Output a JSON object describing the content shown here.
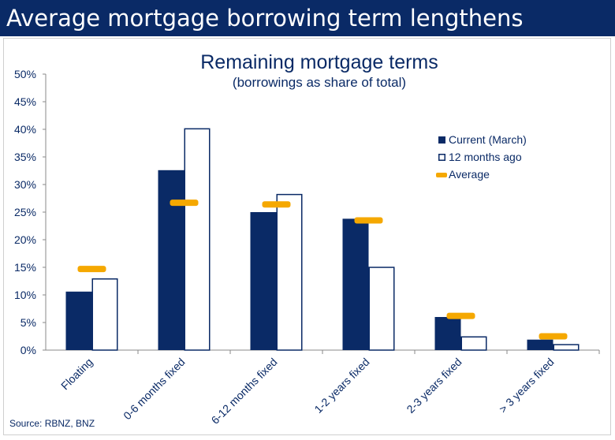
{
  "page": {
    "headline": "Average mortgage borrowing term lengthens"
  },
  "source": "Source: RBNZ, BNZ",
  "colors": {
    "current": "#0a2a66",
    "ago_stroke": "#0a2a66",
    "ago_fill": "#ffffff",
    "average": "#f5a800",
    "banner": "#0a2a66"
  },
  "chart_data": {
    "type": "bar",
    "title": "Remaining mortgage terms",
    "subtitle": "(borrowings as share of total)",
    "categories": [
      "Floating",
      "0-6 months fixed",
      "6-12 months fixed",
      "1-2 years fixed",
      "2-3 years fixed",
      "> 3 years fixed"
    ],
    "series": [
      {
        "name": "Current (March)",
        "values": [
          10.6,
          32.6,
          25.0,
          23.8,
          6.0,
          1.9
        ]
      },
      {
        "name": "12 months ago",
        "values": [
          13.0,
          40.2,
          28.3,
          15.1,
          2.5,
          1.1
        ]
      },
      {
        "name": "Average",
        "values": [
          14.7,
          26.7,
          26.4,
          23.5,
          6.2,
          2.5
        ],
        "style": "marker"
      }
    ],
    "ylim": [
      0,
      50
    ],
    "yticks": [
      "0%",
      "5%",
      "10%",
      "15%",
      "20%",
      "25%",
      "30%",
      "35%",
      "40%",
      "45%",
      "50%"
    ],
    "grid": false,
    "legend": "right"
  }
}
